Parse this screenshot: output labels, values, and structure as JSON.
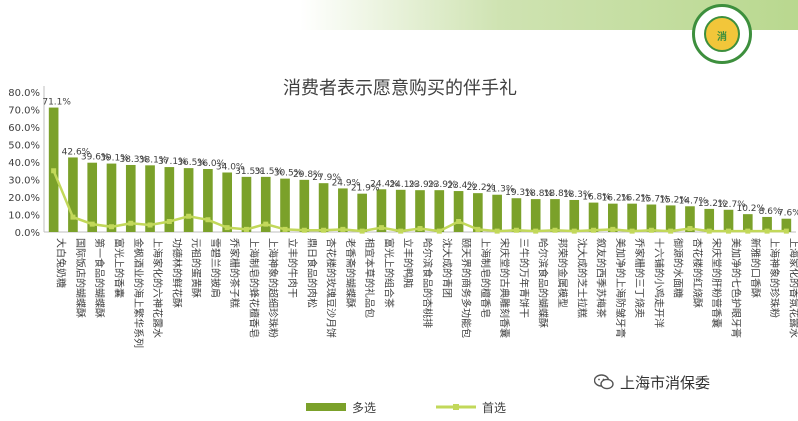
{
  "chart_data": {
    "type": "bar",
    "title": "消费者表示愿意购买的伴手礼",
    "ylim": [
      0,
      80
    ],
    "yticks": [
      "0.0%",
      "10.0%",
      "20.0%",
      "30.0%",
      "40.0%",
      "50.0%",
      "60.0%",
      "70.0%",
      "80.0%"
    ],
    "categories": [
      "大白兔奶糖",
      "国际饭店的蝴蝶酥",
      "第一食品的蝴蝶酥",
      "富光上的香囊",
      "金枫酒业的海上繁华系列",
      "上海家化的六神花露水",
      "功德林的鲜花酥",
      "元祖的蛋黄酥",
      "雪碧兰的披肩",
      "乔家栅的茶子糕",
      "上海制皂的蜂花檀香皂",
      "上海神象的超细珍珠粉",
      "立丰的牛肉干",
      "鼎日食品的肉松",
      "杏花楼的玫瑰豆沙月饼",
      "老香斋的蝴蝶酥",
      "相宜本草的礼品包",
      "富光上的组合茶",
      "立丰的鸭肫",
      "哈尔滨食品的杏桃排",
      "沈大成的青团",
      "颐天界的商务多功能包",
      "上海制皂的檀香皂",
      "宋庆堂的古典雕刻香囊",
      "三牛的万年青饼干",
      "哈尔滨食品的蝴蝶酥",
      "邦荣的金属模型",
      "沈大成的芝士拉糕",
      "叙友的西季苏梅茶",
      "美加净的上海防皱牙膏",
      "乔家栅的三丁烧卖",
      "十六铺的小鸡走开洋",
      "御源的水面糖",
      "杏花楼的红烧酥",
      "宋庆堂的肝粉营香囊",
      "美加净的七色护眼牙膏",
      "新雅的口香酥",
      "上海神象的珍珠粉",
      "上海家化的香氛花露水"
    ],
    "series": [
      {
        "name": "多选",
        "values": [
          71.1,
          42.6,
          39.6,
          39.1,
          38.3,
          38.1,
          37.1,
          36.5,
          36.0,
          34.0,
          31.5,
          31.5,
          30.5,
          29.8,
          27.9,
          24.9,
          21.9,
          24.4,
          24.1,
          23.9,
          23.9,
          23.4,
          22.2,
          21.3,
          19.3,
          18.8,
          18.8,
          18.3,
          16.8,
          16.2,
          16.2,
          15.7,
          15.2,
          14.7,
          13.2,
          12.7,
          10.2,
          8.6,
          7.6
        ],
        "labels": [
          "71.1%",
          "42.6%",
          "39.6%",
          "39.1%",
          "38.3%",
          "38.1%",
          "37.1%",
          "36.5%",
          "36.0%",
          "34.0%",
          "31.5%",
          "31.5%",
          "30.5%",
          "29.8%",
          "27.9%",
          "24.9%",
          "21.9%",
          "24.4%",
          "24.1%",
          "23.9%",
          "23.9%",
          "23.4%",
          "22.2%",
          "21.3%",
          "19.3%",
          "18.8%",
          "18.8%",
          "18.3%",
          "16.8%",
          "16.2%",
          "16.2%",
          "15.7%",
          "15.2%",
          "14.7%",
          "13.2%",
          "12.7%",
          "10.2%",
          "8.6%",
          "7.6%"
        ]
      },
      {
        "name": "首选",
        "values": [
          35.0,
          8.5,
          4.5,
          3.0,
          5.0,
          4.0,
          6.0,
          9.0,
          7.0,
          2.5,
          1.5,
          4.5,
          1.5,
          1.0,
          1.0,
          1.5,
          0.5,
          2.5,
          0.5,
          2.0,
          0.5,
          6.0,
          1.5,
          0.5,
          1.0,
          0.5,
          1.0,
          0.5,
          1.0,
          1.5,
          0.5,
          1.0,
          0.5,
          2.0,
          0.5,
          0.5,
          0.5,
          0.5,
          0.5
        ]
      }
    ],
    "colors": {
      "bar": "#7ba12a",
      "line": "#c2d85a",
      "axis": "#bfbfbf",
      "title": "#404040",
      "label": "#404040"
    },
    "legend": {
      "position": "bottom",
      "items": [
        "多选",
        "首选"
      ]
    }
  },
  "watermark": {
    "label": "上海市消保委"
  },
  "logo": {
    "text": "消"
  }
}
